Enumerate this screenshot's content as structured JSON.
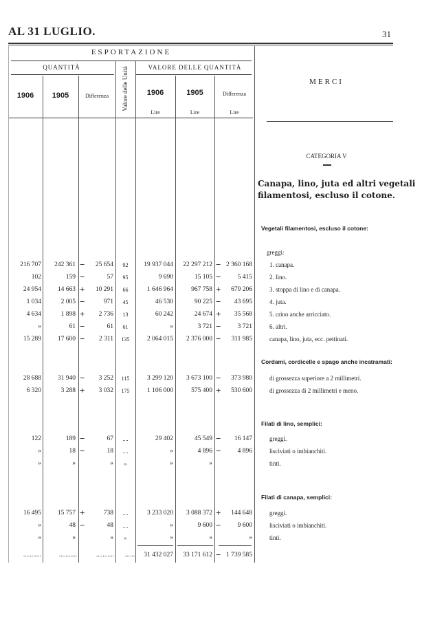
{
  "page": {
    "title": "AL 31 LUGLIO.",
    "number": "31"
  },
  "header": {
    "esportazione": "ESPORTAZIONE",
    "quantita": "QUANTITÀ",
    "valore_quantita": "VALORE DELLE QUANTITÀ",
    "valore_unita": "Valore delle Unità",
    "merci": "MERCI",
    "year1": "1906",
    "year2": "1905",
    "diff": "Differenza",
    "lire": "Lire"
  },
  "category": {
    "label": "CATEGORIA V",
    "title_line1": "Canapa, lino, juta ed altri vegetali",
    "title_line2": "filamentosi, escluso il cotone."
  },
  "sections": [
    {
      "heading": "Vegetali filamentosi, escluso il cotone:",
      "subheading": "greggi:",
      "rows": [
        {
          "q1906": "216 707",
          "q1905": "242 361",
          "qsign": "−",
          "qdiff": "25 654",
          "unit": "92",
          "v1906": "19 937 044",
          "v1905": "22 297 212",
          "vsign": "−",
          "vdiff": "2 360 168",
          "label": "1. canapa."
        },
        {
          "q1906": "102",
          "q1905": "159",
          "qsign": "−",
          "qdiff": "57",
          "unit": "95",
          "v1906": "9 690",
          "v1905": "15 105",
          "vsign": "−",
          "vdiff": "5 415",
          "label": "2. lino."
        },
        {
          "q1906": "24 954",
          "q1905": "14 663",
          "qsign": "+",
          "qdiff": "10 291",
          "unit": "66",
          "v1906": "1 646 964",
          "v1905": "967 758",
          "vsign": "+",
          "vdiff": "679 206",
          "label": "3. stoppa di lino e di canapa."
        },
        {
          "q1906": "1 034",
          "q1905": "2 005",
          "qsign": "−",
          "qdiff": "971",
          "unit": "45",
          "v1906": "46 530",
          "v1905": "90 225",
          "vsign": "−",
          "vdiff": "43 695",
          "label": "4. juta."
        },
        {
          "q1906": "4 634",
          "q1905": "1 898",
          "qsign": "+",
          "qdiff": "2 736",
          "unit": "13",
          "v1906": "60 242",
          "v1905": "24 674",
          "vsign": "+",
          "vdiff": "35 568",
          "label": "5. crino anche arricciato."
        },
        {
          "q1906": "»",
          "q1905": "61",
          "qsign": "−",
          "qdiff": "61",
          "unit": "61",
          "v1906": "»",
          "v1905": "3 721",
          "vsign": "−",
          "vdiff": "3 721",
          "label": "6. altri."
        },
        {
          "q1906": "15 289",
          "q1905": "17 600",
          "qsign": "−",
          "qdiff": "2 311",
          "unit": "135",
          "v1906": "2 064 015",
          "v1905": "2 376 000",
          "vsign": "−",
          "vdiff": "311 985",
          "label": "canapa, lino, juta, ecc. pettinati."
        }
      ]
    },
    {
      "heading": "Cordami, cordicelle e spago anche incatramati:",
      "subheading": "",
      "rows": [
        {
          "q1906": "28 688",
          "q1905": "31 940",
          "qsign": "−",
          "qdiff": "3 252",
          "unit": "115",
          "v1906": "3 299 120",
          "v1905": "3 673 100",
          "vsign": "−",
          "vdiff": "373 980",
          "label": "di grossezza superiore a 2 millimetri."
        },
        {
          "q1906": "6 320",
          "q1905": "3 288",
          "qsign": "+",
          "qdiff": "3 032",
          "unit": "175",
          "v1906": "1 106 000",
          "v1905": "575 400",
          "vsign": "+",
          "vdiff": "530 600",
          "label": "di grossezza di 2 millimetri e meno."
        }
      ]
    },
    {
      "heading": "Filati di lino, semplici:",
      "subheading": "",
      "rows": [
        {
          "q1906": "122",
          "q1905": "189",
          "qsign": "−",
          "qdiff": "67",
          "unit": "....",
          "v1906": "29 402",
          "v1905": "45 549",
          "vsign": "−",
          "vdiff": "16 147",
          "label": "greggi."
        },
        {
          "q1906": "»",
          "q1905": "18",
          "qsign": "−",
          "qdiff": "18",
          "unit": "....",
          "v1906": "»",
          "v1905": "4 896",
          "vsign": "−",
          "vdiff": "4 896",
          "label": "lisciviati o imbianchiti."
        },
        {
          "q1906": "»",
          "q1905": "»",
          "qsign": "",
          "qdiff": "»",
          "unit": "»",
          "v1906": "»",
          "v1905": "»",
          "vsign": "",
          "vdiff": "",
          "label": "tinti."
        }
      ]
    },
    {
      "heading": "Filati di canapa, semplici:",
      "subheading": "",
      "rows": [
        {
          "q1906": "16 495",
          "q1905": "15 757",
          "qsign": "+",
          "qdiff": "738",
          "unit": "....",
          "v1906": "3 233 020",
          "v1905": "3 088 372",
          "vsign": "+",
          "vdiff": "144 648",
          "label": "greggi."
        },
        {
          "q1906": "»",
          "q1905": "48",
          "qsign": "−",
          "qdiff": "48",
          "unit": "....",
          "v1906": "»",
          "v1905": "9 600",
          "vsign": "−",
          "vdiff": "9 600",
          "label": "lisciviati o imbianchiti."
        },
        {
          "q1906": "»",
          "q1905": "»",
          "qsign": "",
          "qdiff": "»",
          "unit": "»",
          "v1906": "»",
          "v1905": "»",
          "vsign": "",
          "vdiff": "»",
          "label": "tinti."
        }
      ]
    }
  ],
  "total": {
    "leader": "...........",
    "unit_leader": "......",
    "v1906": "31 432 027",
    "v1905": "33 171 612",
    "vsign": "−",
    "vdiff": "1 739 585"
  }
}
